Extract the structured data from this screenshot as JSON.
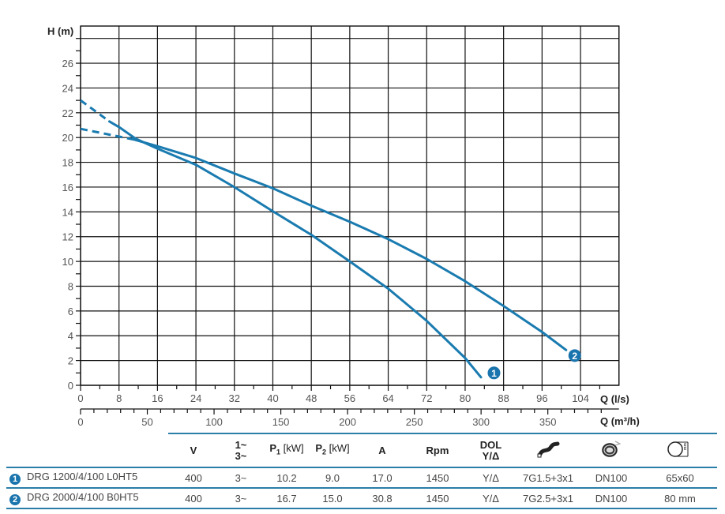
{
  "chart_data": {
    "type": "line",
    "title": "",
    "xlabel": "Q (l/s)",
    "xlabel_secondary": "Q (m³/h)",
    "ylabel": "H (m)",
    "xlim": [
      0,
      112
    ],
    "ylim": [
      0,
      29
    ],
    "grid": true,
    "x_ticks": [
      0,
      8,
      16,
      24,
      32,
      40,
      48,
      56,
      64,
      72,
      80,
      88,
      96,
      104
    ],
    "x_ticks_secondary": [
      0,
      50,
      100,
      150,
      200,
      250,
      300,
      350
    ],
    "y_ticks": [
      0,
      2,
      4,
      6,
      8,
      10,
      12,
      14,
      16,
      18,
      20,
      22,
      24,
      26
    ],
    "series": [
      {
        "name": "1",
        "label": "DRG 1200/4/100 L0HT5",
        "color": "#1a7bb0",
        "dashed": [
          [
            0,
            23.0
          ],
          [
            6,
            21.3
          ]
        ],
        "points": [
          [
            6,
            21.3
          ],
          [
            8,
            20.85
          ],
          [
            11.5,
            19.9
          ],
          [
            16,
            19.1
          ],
          [
            24,
            17.8
          ],
          [
            32,
            16.0
          ],
          [
            40,
            14.05
          ],
          [
            48,
            12.15
          ],
          [
            56,
            10.0
          ],
          [
            64,
            7.8
          ],
          [
            72,
            5.2
          ],
          [
            80,
            2.2
          ],
          [
            83.3,
            0.65
          ]
        ],
        "marker_at": [
          86,
          1.0
        ]
      },
      {
        "name": "2",
        "label": "DRG 2000/4/100 B0HT5",
        "color": "#1a7bb0",
        "dashed": [
          [
            0,
            20.7
          ],
          [
            11,
            19.85
          ]
        ],
        "points": [
          [
            11,
            19.85
          ],
          [
            16,
            19.3
          ],
          [
            24,
            18.35
          ],
          [
            32,
            17.1
          ],
          [
            40,
            15.9
          ],
          [
            48,
            14.5
          ],
          [
            56,
            13.2
          ],
          [
            64,
            11.8
          ],
          [
            72,
            10.2
          ],
          [
            80,
            8.4
          ],
          [
            88,
            6.4
          ],
          [
            96,
            4.3
          ],
          [
            101,
            2.85
          ]
        ],
        "marker_at": [
          102.8,
          2.4
        ]
      }
    ]
  },
  "table": {
    "headers": {
      "v": "V",
      "phase_top": "1~",
      "phase_bottom": "3~",
      "p1": "P",
      "p1_sub": "1",
      "p1_unit": " [kW]",
      "p2": "P",
      "p2_sub": "2",
      "p2_unit": " [kW]",
      "a": "A",
      "rpm": "Rpm",
      "dol_top": "DOL",
      "dol_bottom": "Y/Δ",
      "cable_icon": "cable-icon",
      "outlet_icon": "outlet-flange-icon",
      "solids_icon": "solids-passage-icon"
    },
    "rows": [
      {
        "badge": "1",
        "model": "DRG 1200/4/100 L0HT5",
        "v": "400",
        "phase": "3~",
        "p1": "10.2",
        "p2": "9.0",
        "a": "17.0",
        "rpm": "1450",
        "start": "Y/Δ",
        "cable": "7G1.5+3x1",
        "outlet": "DN100",
        "solids": "65x60"
      },
      {
        "badge": "2",
        "model": "DRG 2000/4/100 B0HT5",
        "v": "400",
        "phase": "3~",
        "p1": "16.7",
        "p2": "15.0",
        "a": "30.8",
        "rpm": "1450",
        "start": "Y/Δ",
        "cable": "7G2.5+3x1",
        "outlet": "DN100",
        "solids": "80 mm"
      }
    ]
  }
}
